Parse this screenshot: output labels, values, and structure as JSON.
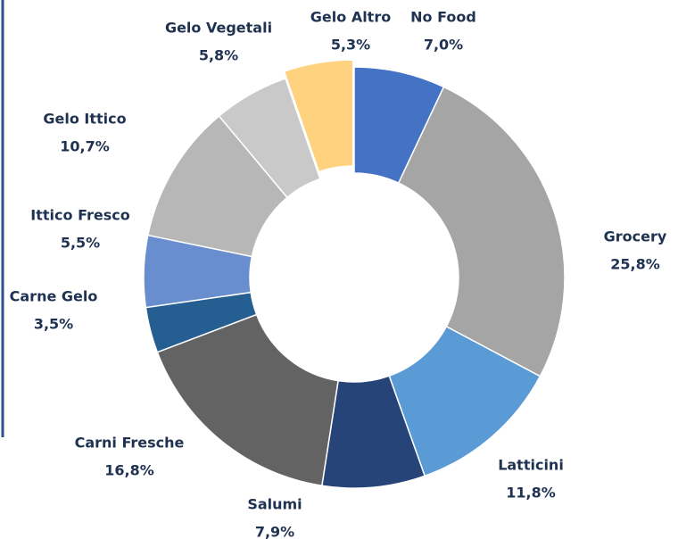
{
  "chart_data": {
    "type": "donut",
    "categories": [
      "No Food",
      "Grocery",
      "Latticini",
      "Salumi",
      "Carni Fresche",
      "Carne Gelo",
      "Ittico Fresco",
      "Gelo Ittico",
      "Gelo Vegetali",
      "Gelo Altro"
    ],
    "values": [
      7.0,
      25.8,
      11.8,
      7.9,
      16.8,
      3.5,
      5.5,
      10.7,
      5.8,
      5.3
    ],
    "value_labels": [
      "7,0%",
      "25,8%",
      "11,8%",
      "7,9%",
      "16,8%",
      "3,5%",
      "5,5%",
      "10,7%",
      "5,8%",
      "5,3%"
    ],
    "colors": [
      "#4472c4",
      "#a5a5a5",
      "#5b9bd5",
      "#264478",
      "#636363",
      "#255e91",
      "#698ed0",
      "#b7b7b7",
      "#c9c9c9",
      "#ffd27f"
    ]
  }
}
